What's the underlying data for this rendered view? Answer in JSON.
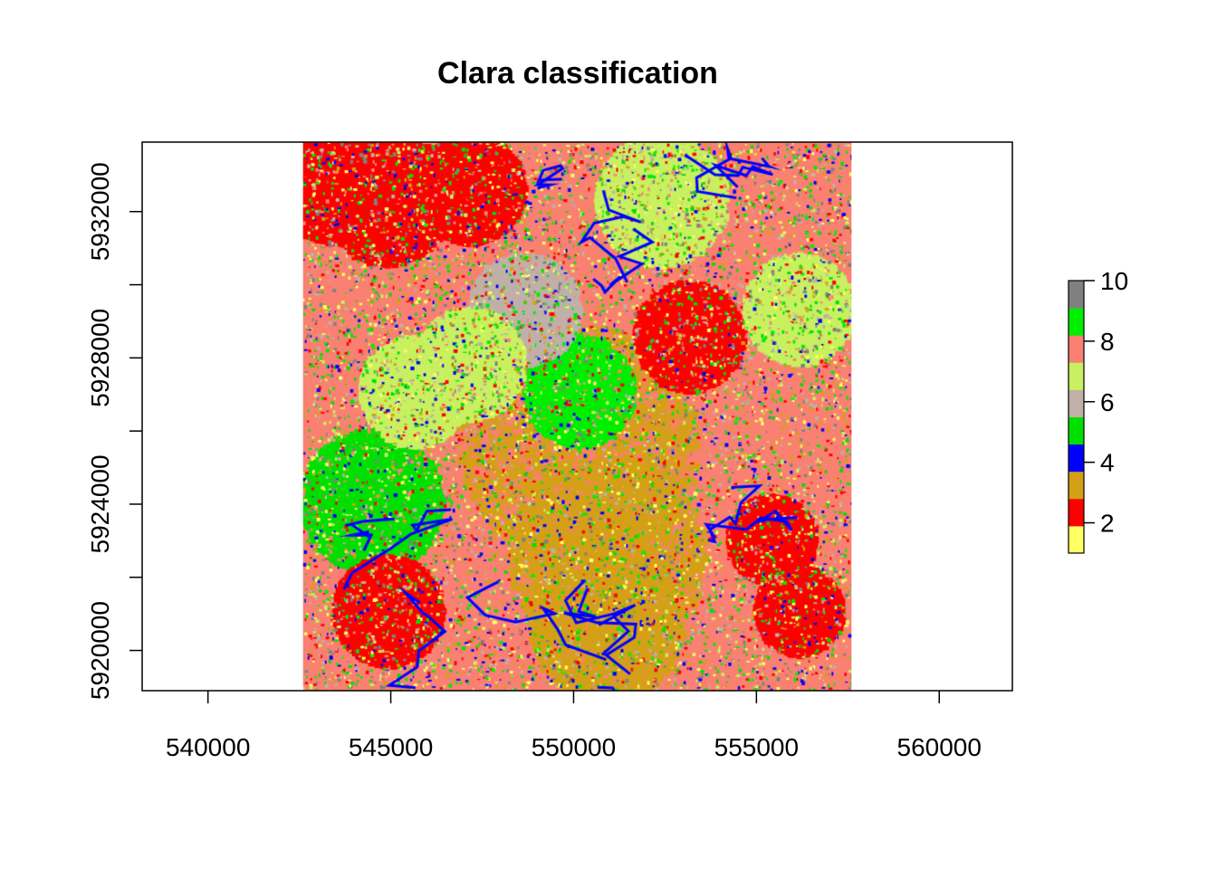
{
  "chart_data": {
    "type": "heatmap",
    "title": "Clara classification",
    "xlabel": "",
    "ylabel": "",
    "xlim": [
      538200,
      562000
    ],
    "ylim": [
      5918900,
      5933900
    ],
    "raster_extent": {
      "x": [
        542600,
        557600
      ],
      "y": [
        5918900,
        5933900
      ]
    },
    "x_ticks": [
      {
        "value": 540000,
        "label": "540000"
      },
      {
        "value": 545000,
        "label": "545000"
      },
      {
        "value": 550000,
        "label": "550000"
      },
      {
        "value": 555000,
        "label": "555000"
      },
      {
        "value": 560000,
        "label": "560000"
      }
    ],
    "y_ticks": [
      {
        "value": 5920000,
        "label": "5920000"
      },
      {
        "value": 5922000,
        "label": ""
      },
      {
        "value": 5924000,
        "label": "5924000"
      },
      {
        "value": 5926000,
        "label": ""
      },
      {
        "value": 5928000,
        "label": "5928000"
      },
      {
        "value": 5930000,
        "label": ""
      },
      {
        "value": 5932000,
        "label": "5932000"
      }
    ],
    "legend": {
      "placement": "right",
      "range": [
        1,
        10
      ],
      "labels": [
        {
          "value": 2,
          "label": "2"
        },
        {
          "value": 4,
          "label": "4"
        },
        {
          "value": 6,
          "label": "6"
        },
        {
          "value": 8,
          "label": "8"
        },
        {
          "value": 10,
          "label": "10"
        }
      ],
      "classes": [
        {
          "class": 1,
          "color": "#ffff66"
        },
        {
          "class": 2,
          "color": "#ff0000"
        },
        {
          "class": 3,
          "color": "#d4a017"
        },
        {
          "class": 4,
          "color": "#0000ff"
        },
        {
          "class": 5,
          "color": "#00e000"
        },
        {
          "class": 6,
          "color": "#c0b0a8"
        },
        {
          "class": 7,
          "color": "#c8f060"
        },
        {
          "class": 8,
          "color": "#fa8072"
        },
        {
          "class": 9,
          "color": "#00ee00"
        },
        {
          "class": 10,
          "color": "#808080"
        }
      ]
    }
  }
}
